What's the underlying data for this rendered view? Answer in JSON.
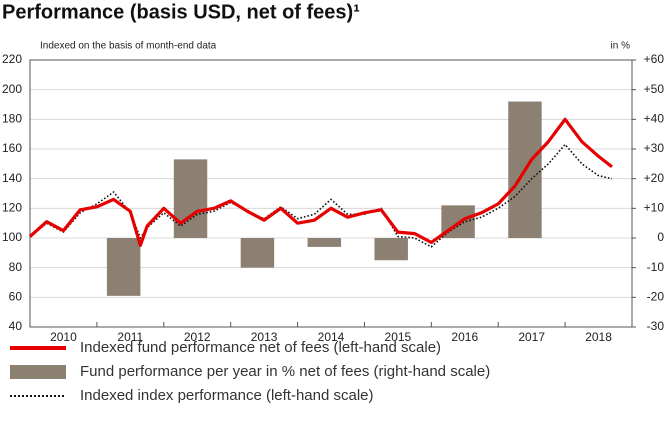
{
  "chart_data": {
    "type": "combo",
    "title": "Performance (basis USD, net of fees)¹",
    "subtitle": "Indexed on the basis of month-end data",
    "y2_unit": "in %",
    "xlim": [
      2010,
      2019
    ],
    "xticks": [
      {
        "value": 2010.5,
        "label": "2010"
      },
      {
        "value": 2011.5,
        "label": "2011"
      },
      {
        "value": 2012.5,
        "label": "2012"
      },
      {
        "value": 2013.5,
        "label": "2013"
      },
      {
        "value": 2014.5,
        "label": "2014"
      },
      {
        "value": 2015.5,
        "label": "2015"
      },
      {
        "value": 2016.5,
        "label": "2016"
      },
      {
        "value": 2017.5,
        "label": "2017"
      },
      {
        "value": 2018.5,
        "label": "2018"
      }
    ],
    "ylim": [
      40,
      220
    ],
    "yticks": [
      40,
      60,
      80,
      100,
      120,
      140,
      160,
      180,
      200,
      220
    ],
    "y2lim": [
      -30,
      60
    ],
    "y2ticks": [
      -30,
      -20,
      -10,
      0,
      {
        "value": 10,
        "label": "+10"
      },
      {
        "value": 20,
        "label": "+20"
      },
      {
        "value": 30,
        "label": "+30"
      },
      {
        "value": 40,
        "label": "+40"
      },
      {
        "value": 50,
        "label": "+50"
      },
      {
        "value": 60,
        "label": "+60"
      }
    ],
    "grid": true,
    "series": [
      {
        "name": "Fund performance per year in % net of fees (right-hand scale)",
        "type": "bar",
        "axis": "y2",
        "color": "#8c8073",
        "x": [
          2011,
          2012,
          2013,
          2014,
          2015,
          2016,
          2017
        ],
        "values": [
          -19.5,
          26.5,
          -10,
          -3,
          -7.5,
          11,
          46
        ]
      },
      {
        "name": "Indexed index performance (left-hand scale)",
        "type": "line",
        "style": "dotted",
        "color": "#111111",
        "x": [
          2010,
          2010.25,
          2010.5,
          2010.75,
          2011,
          2011.25,
          2011.5,
          2011.65,
          2011.75,
          2012,
          2012.25,
          2012.5,
          2012.75,
          2013,
          2013.25,
          2013.5,
          2013.75,
          2014,
          2014.25,
          2014.5,
          2014.75,
          2015,
          2015.25,
          2015.5,
          2015.75,
          2016,
          2016.25,
          2016.5,
          2016.75,
          2017,
          2017.25,
          2017.5,
          2017.75,
          2018,
          2018.25,
          2018.5,
          2018.7
        ],
        "values": [
          101,
          110,
          104,
          117,
          123,
          131,
          117,
          100,
          107,
          117,
          108,
          116,
          118,
          124,
          118,
          113,
          121,
          113,
          116,
          126,
          116,
          116,
          120,
          101,
          100,
          94,
          104,
          111,
          114,
          120,
          128,
          140,
          150,
          163,
          150,
          142,
          140
        ]
      },
      {
        "name": "Indexed fund performance net of fees (left-hand scale)",
        "type": "line",
        "style": "solid",
        "color": "#e60000",
        "x": [
          2010,
          2010.25,
          2010.5,
          2010.75,
          2011,
          2011.25,
          2011.5,
          2011.65,
          2011.75,
          2012,
          2012.25,
          2012.5,
          2012.75,
          2013,
          2013.25,
          2013.5,
          2013.75,
          2014,
          2014.25,
          2014.5,
          2014.75,
          2015,
          2015.25,
          2015.5,
          2015.75,
          2016,
          2016.25,
          2016.5,
          2016.75,
          2017,
          2017.25,
          2017.5,
          2017.75,
          2018,
          2018.25,
          2018.5,
          2018.7
        ],
        "values": [
          101,
          111,
          105,
          119,
          121,
          126,
          118,
          95,
          108,
          120,
          110,
          118,
          120,
          125,
          118,
          112,
          120,
          110,
          112,
          120,
          114,
          117,
          119,
          104,
          103,
          97,
          105,
          113,
          117,
          123,
          135,
          153,
          165,
          180,
          165,
          155,
          148
        ]
      }
    ],
    "legend_order": [
      2,
      0,
      1
    ]
  }
}
